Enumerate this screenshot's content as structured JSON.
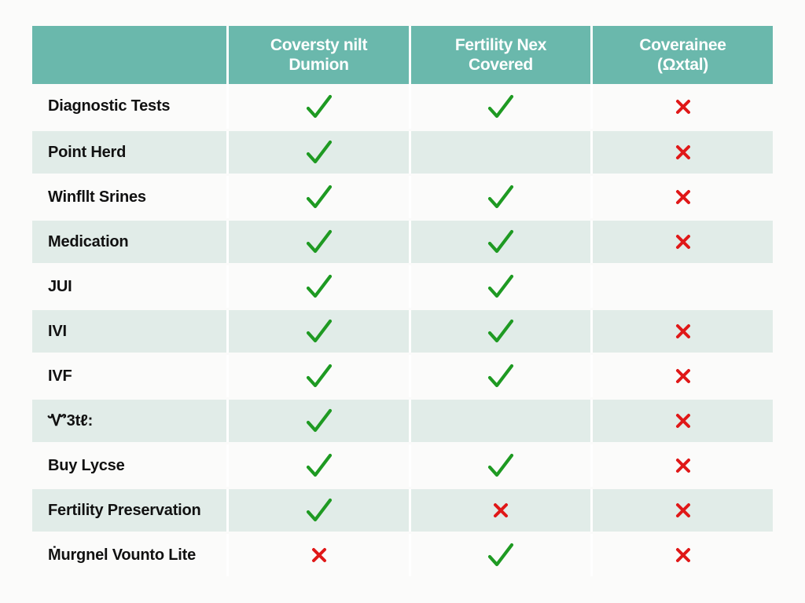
{
  "colors": {
    "header_bg": "#6ab8ac",
    "row_shaded": "#e1ece8",
    "check": "#1e9a22",
    "cross": "#e01818"
  },
  "header": [
    "",
    "Coversty nilt\nDumion",
    "Fertility Nex\nCovered",
    "Coverainee\n(Ωxtal)"
  ],
  "rows": [
    {
      "label": "Diagnostic Tests",
      "cells": [
        "check",
        "check",
        "cross"
      ]
    },
    {
      "label": "Point Herd",
      "cells": [
        "check",
        "",
        "cross"
      ]
    },
    {
      "label": "Winfllt Srines",
      "cells": [
        "check",
        "check",
        "cross"
      ]
    },
    {
      "label": "Medication",
      "cells": [
        "check",
        "check",
        "cross"
      ]
    },
    {
      "label": "JUI",
      "cells": [
        "check",
        "check",
        ""
      ]
    },
    {
      "label": "IVI",
      "cells": [
        "check",
        "check",
        "cross"
      ]
    },
    {
      "label": "IVF",
      "cells": [
        "check",
        "check",
        "cross"
      ]
    },
    {
      "label": "Ꮙ3tℓ:",
      "cells": [
        "check",
        "",
        "cross"
      ]
    },
    {
      "label": "Buy Lycse",
      "cells": [
        "check",
        "check",
        "cross"
      ]
    },
    {
      "label": "Fertility Preservation",
      "cells": [
        "check",
        "cross",
        "cross"
      ]
    },
    {
      "label": "Ṁurgnel Vounto Lite",
      "cells": [
        "cross",
        "check",
        "cross"
      ]
    }
  ]
}
